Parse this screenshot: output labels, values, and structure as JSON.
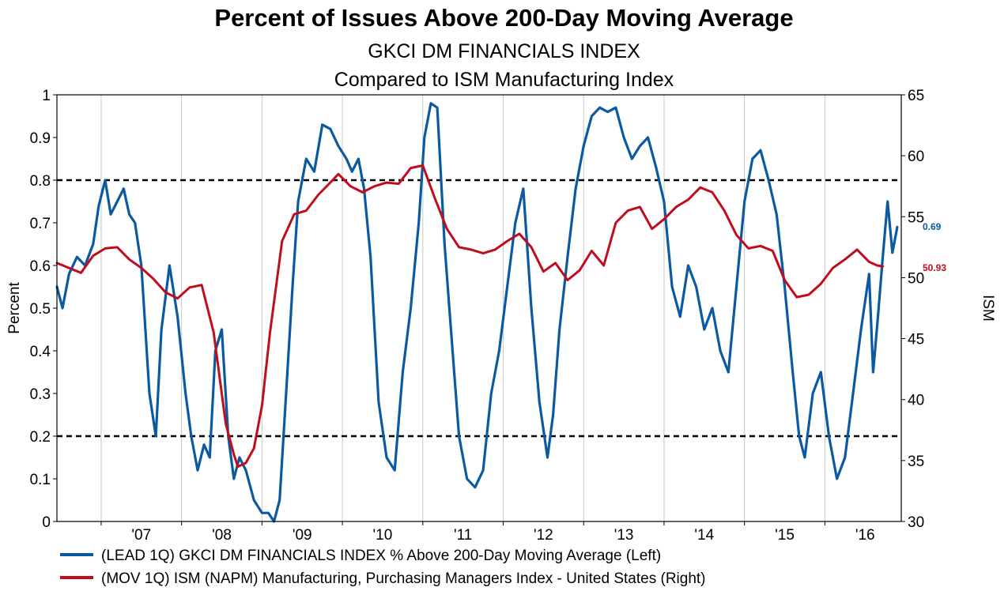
{
  "titles": {
    "main": "Percent of Issues Above 200-Day Moving Average",
    "sub1": "GKCI DM FINANCIALS INDEX",
    "sub2": "Compared to ISM Manufacturing Index"
  },
  "colors": {
    "blue": "#0b5aa1",
    "red": "#c00d1e",
    "grid": "#c8c8c8",
    "ref": "#000000"
  },
  "chart_data": {
    "type": "line",
    "title": "Percent of Issues Above 200-Day Moving Average",
    "subtitle": "GKCI DM FINANCIALS INDEX / Compared to ISM Manufacturing Index",
    "x_range": [
      2006.45,
      2016.95
    ],
    "year_ticks": [
      2007,
      2008,
      2009,
      2010,
      2011,
      2012,
      2013,
      2014,
      2015,
      2016
    ],
    "year_labels": [
      "'07",
      "'08",
      "'09",
      "'10",
      "'11",
      "'12",
      "'13",
      "'14",
      "'15",
      "'16"
    ],
    "left_axis": {
      "label": "Percent",
      "min": 0,
      "max": 1,
      "ticks": [
        0,
        0.1,
        0.2,
        0.3,
        0.4,
        0.5,
        0.6,
        0.7,
        0.8,
        0.9,
        1
      ],
      "tick_labels": [
        "0",
        "0.1",
        "0.2",
        "0.3",
        "0.4",
        "0.5",
        "0.6",
        "0.7",
        "0.8",
        "0.9",
        "1"
      ]
    },
    "right_axis": {
      "label": "ISM",
      "min": 30,
      "max": 65,
      "ticks": [
        30,
        35,
        40,
        45,
        50,
        55,
        60,
        65
      ],
      "tick_labels": [
        "30",
        "35",
        "40",
        "45",
        "50",
        "55",
        "60",
        "65"
      ]
    },
    "reference_lines_left": [
      0.2,
      0.8
    ],
    "grid": "vertical",
    "legend_position": "bottom",
    "series": [
      {
        "name": "(LEAD 1Q) GKCI DM FINANCIALS INDEX % Above 200-Day Moving Average  (Left)",
        "axis": "left",
        "color": "#0b5aa1",
        "end_label": "0.69",
        "x": [
          2006.45,
          2006.52,
          2006.6,
          2006.7,
          2006.8,
          2006.9,
          2006.97,
          2007.05,
          2007.12,
          2007.2,
          2007.28,
          2007.35,
          2007.42,
          2007.5,
          2007.55,
          2007.6,
          2007.68,
          2007.75,
          2007.85,
          2007.95,
          2008.05,
          2008.12,
          2008.2,
          2008.28,
          2008.35,
          2008.42,
          2008.5,
          2008.58,
          2008.65,
          2008.72,
          2008.8,
          2008.9,
          2009.0,
          2009.08,
          2009.15,
          2009.22,
          2009.3,
          2009.38,
          2009.45,
          2009.55,
          2009.65,
          2009.75,
          2009.85,
          2009.95,
          2010.05,
          2010.12,
          2010.2,
          2010.27,
          2010.35,
          2010.45,
          2010.55,
          2010.65,
          2010.75,
          2010.85,
          2010.95,
          2011.02,
          2011.1,
          2011.18,
          2011.27,
          2011.35,
          2011.45,
          2011.55,
          2011.65,
          2011.75,
          2011.85,
          2011.95,
          2012.05,
          2012.15,
          2012.25,
          2012.35,
          2012.45,
          2012.55,
          2012.62,
          2012.7,
          2012.8,
          2012.9,
          2013.0,
          2013.1,
          2013.2,
          2013.3,
          2013.4,
          2013.5,
          2013.6,
          2013.7,
          2013.8,
          2013.9,
          2014.0,
          2014.1,
          2014.2,
          2014.3,
          2014.4,
          2014.5,
          2014.6,
          2014.7,
          2014.8,
          2014.9,
          2015.0,
          2015.1,
          2015.2,
          2015.3,
          2015.4,
          2015.5,
          2015.6,
          2015.68,
          2015.75,
          2015.85,
          2015.95,
          2016.05,
          2016.15,
          2016.25,
          2016.35,
          2016.45,
          2016.55,
          2016.6,
          2016.66,
          2016.72,
          2016.78,
          2016.84,
          2016.9
        ],
        "y": [
          0.55,
          0.5,
          0.58,
          0.62,
          0.6,
          0.65,
          0.74,
          0.8,
          0.72,
          0.75,
          0.78,
          0.72,
          0.7,
          0.6,
          0.45,
          0.3,
          0.2,
          0.45,
          0.6,
          0.48,
          0.3,
          0.2,
          0.12,
          0.18,
          0.15,
          0.4,
          0.45,
          0.2,
          0.1,
          0.15,
          0.12,
          0.05,
          0.02,
          0.02,
          0.0,
          0.05,
          0.3,
          0.55,
          0.75,
          0.85,
          0.82,
          0.93,
          0.92,
          0.88,
          0.85,
          0.82,
          0.85,
          0.78,
          0.62,
          0.28,
          0.15,
          0.12,
          0.35,
          0.5,
          0.7,
          0.9,
          0.98,
          0.97,
          0.65,
          0.45,
          0.2,
          0.1,
          0.08,
          0.12,
          0.3,
          0.4,
          0.55,
          0.7,
          0.78,
          0.5,
          0.28,
          0.15,
          0.25,
          0.45,
          0.62,
          0.78,
          0.88,
          0.95,
          0.97,
          0.96,
          0.97,
          0.9,
          0.85,
          0.88,
          0.9,
          0.83,
          0.75,
          0.55,
          0.48,
          0.6,
          0.55,
          0.45,
          0.5,
          0.4,
          0.35,
          0.55,
          0.75,
          0.85,
          0.87,
          0.8,
          0.72,
          0.55,
          0.35,
          0.2,
          0.15,
          0.3,
          0.35,
          0.2,
          0.1,
          0.15,
          0.3,
          0.45,
          0.58,
          0.35,
          0.48,
          0.62,
          0.75,
          0.63,
          0.69
        ]
      },
      {
        "name": "(MOV 1Q) ISM (NAPM) Manufacturing, Purchasing Managers Index - United States  (Right)",
        "axis": "right",
        "color": "#c00d1e",
        "end_label": "50.93",
        "x": [
          2006.45,
          2006.6,
          2006.75,
          2006.9,
          2007.05,
          2007.2,
          2007.35,
          2007.5,
          2007.65,
          2007.8,
          2007.95,
          2008.1,
          2008.25,
          2008.4,
          2008.55,
          2008.65,
          2008.7,
          2008.8,
          2008.9,
          2009.0,
          2009.1,
          2009.25,
          2009.4,
          2009.55,
          2009.7,
          2009.85,
          2009.95,
          2010.1,
          2010.25,
          2010.4,
          2010.55,
          2010.7,
          2010.85,
          2011.0,
          2011.15,
          2011.3,
          2011.45,
          2011.6,
          2011.75,
          2011.9,
          2012.05,
          2012.2,
          2012.35,
          2012.5,
          2012.65,
          2012.8,
          2012.95,
          2013.1,
          2013.25,
          2013.4,
          2013.55,
          2013.7,
          2013.85,
          2014.0,
          2014.15,
          2014.3,
          2014.45,
          2014.6,
          2014.75,
          2014.9,
          2015.05,
          2015.2,
          2015.35,
          2015.5,
          2015.65,
          2015.8,
          2015.95,
          2016.1,
          2016.25,
          2016.4,
          2016.55,
          2016.65,
          2016.72
        ],
        "y": [
          51.2,
          50.8,
          50.4,
          51.8,
          52.4,
          52.5,
          51.5,
          50.8,
          49.9,
          48.8,
          48.3,
          49.2,
          49.4,
          45.5,
          38.0,
          35.5,
          34.5,
          34.8,
          36.0,
          39.5,
          45.5,
          53.0,
          55.2,
          55.5,
          56.8,
          57.8,
          58.5,
          57.5,
          57.0,
          57.5,
          57.8,
          57.7,
          59.0,
          59.2,
          56.5,
          54.0,
          52.5,
          52.3,
          52.0,
          52.3,
          53.0,
          53.6,
          52.5,
          50.5,
          51.2,
          49.8,
          50.6,
          52.2,
          51.0,
          54.5,
          55.5,
          55.8,
          54.0,
          54.8,
          55.8,
          56.4,
          57.4,
          57.0,
          55.5,
          53.5,
          52.4,
          52.6,
          52.2,
          49.8,
          48.4,
          48.6,
          49.5,
          50.8,
          51.5,
          52.3,
          51.3,
          51.0,
          50.93
        ]
      }
    ]
  }
}
